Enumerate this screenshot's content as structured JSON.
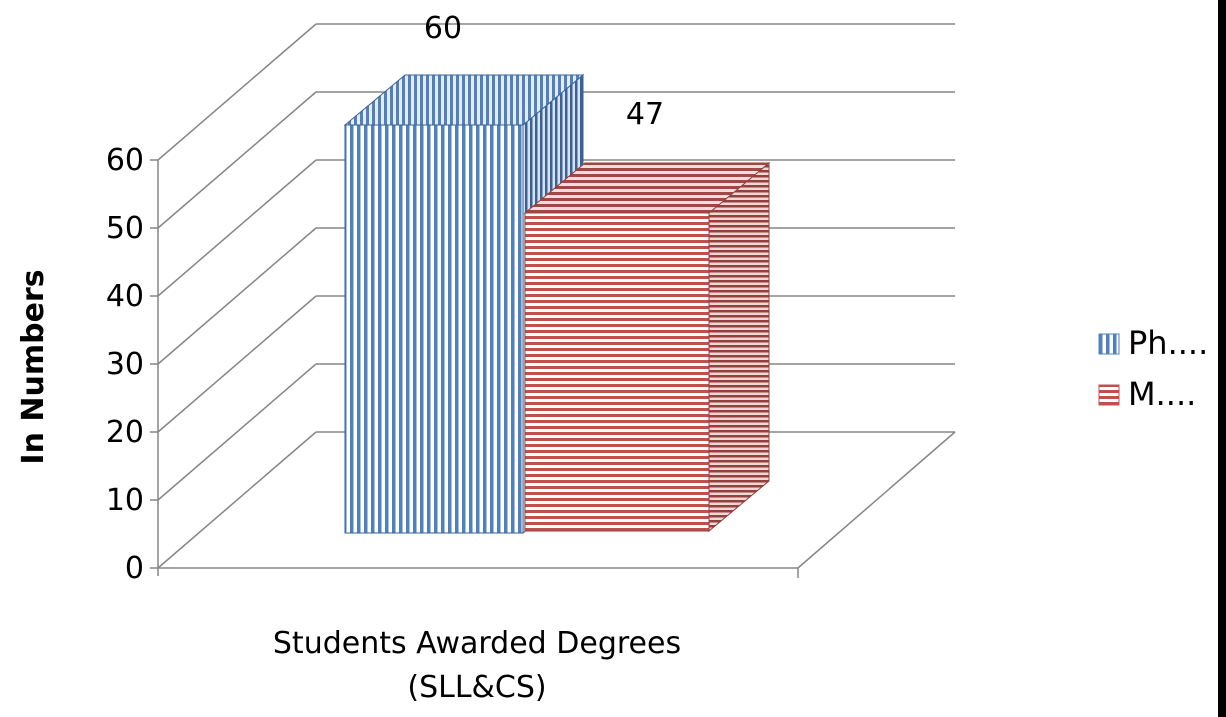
{
  "chart_data": {
    "type": "bar",
    "ylabel": "In Numbers",
    "categories": [
      "Students Awarded Degrees (SLL&CS)"
    ],
    "category_lines": [
      "Students Awarded Degrees",
      "(SLL&CS)"
    ],
    "ylim": [
      0,
      60
    ],
    "yticks": [
      "0",
      "10",
      "20",
      "30",
      "40",
      "50",
      "60"
    ],
    "series": [
      {
        "name": "Ph....",
        "values": [
          60
        ],
        "data_label": "60",
        "color": "#4F81BD",
        "pattern": "vertical-stripes"
      },
      {
        "name": "M....",
        "values": [
          47
        ],
        "data_label": "47",
        "color": "#C0504D",
        "pattern": "horizontal-stripes"
      }
    ],
    "grid": true,
    "legend_position": "right",
    "style": "3d-clustered-column"
  }
}
